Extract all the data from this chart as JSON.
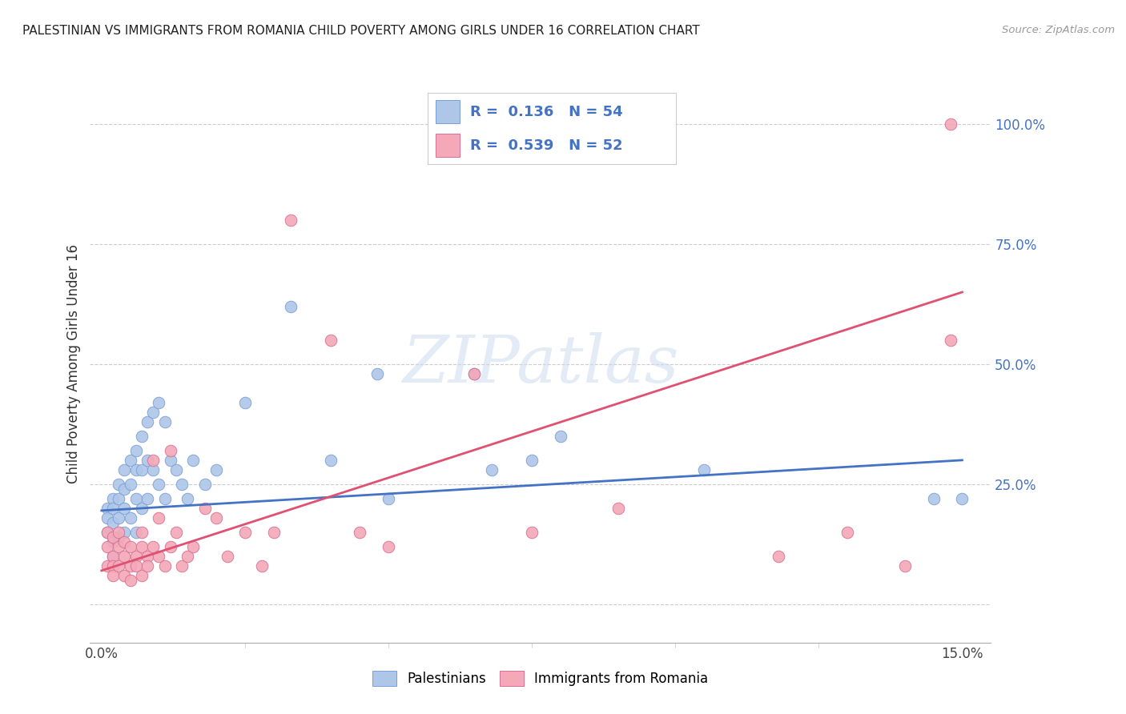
{
  "title": "PALESTINIAN VS IMMIGRANTS FROM ROMANIA CHILD POVERTY AMONG GIRLS UNDER 16 CORRELATION CHART",
  "source": "Source: ZipAtlas.com",
  "ylabel": "Child Poverty Among Girls Under 16",
  "xlim": [
    0.0,
    0.155
  ],
  "ylim": [
    -0.08,
    1.08
  ],
  "color_blue": "#aec6e8",
  "color_pink": "#f4a8b8",
  "color_line_blue": "#4472c4",
  "color_line_pink": "#e05070",
  "blue_line_x0": 0.0,
  "blue_line_y0": 0.195,
  "blue_line_x1": 0.15,
  "blue_line_y1": 0.3,
  "pink_line_x0": 0.0,
  "pink_line_y0": 0.07,
  "pink_line_x1": 0.15,
  "pink_line_y1": 0.65,
  "palestinians_x": [
    0.001,
    0.001,
    0.001,
    0.002,
    0.002,
    0.002,
    0.002,
    0.002,
    0.003,
    0.003,
    0.003,
    0.003,
    0.004,
    0.004,
    0.004,
    0.004,
    0.005,
    0.005,
    0.005,
    0.006,
    0.006,
    0.006,
    0.006,
    0.007,
    0.007,
    0.007,
    0.008,
    0.008,
    0.008,
    0.009,
    0.009,
    0.01,
    0.01,
    0.011,
    0.011,
    0.012,
    0.013,
    0.014,
    0.015,
    0.016,
    0.018,
    0.02,
    0.025,
    0.033,
    0.04,
    0.048,
    0.05,
    0.065,
    0.068,
    0.075,
    0.08,
    0.105,
    0.145,
    0.15
  ],
  "palestinians_y": [
    0.2,
    0.18,
    0.15,
    0.22,
    0.2,
    0.17,
    0.13,
    0.1,
    0.25,
    0.22,
    0.18,
    0.14,
    0.28,
    0.24,
    0.2,
    0.15,
    0.3,
    0.25,
    0.18,
    0.32,
    0.28,
    0.22,
    0.15,
    0.35,
    0.28,
    0.2,
    0.38,
    0.3,
    0.22,
    0.4,
    0.28,
    0.42,
    0.25,
    0.38,
    0.22,
    0.3,
    0.28,
    0.25,
    0.22,
    0.3,
    0.25,
    0.28,
    0.42,
    0.62,
    0.3,
    0.48,
    0.22,
    0.48,
    0.28,
    0.3,
    0.35,
    0.28,
    0.22,
    0.22
  ],
  "romania_x": [
    0.001,
    0.001,
    0.001,
    0.002,
    0.002,
    0.002,
    0.002,
    0.003,
    0.003,
    0.003,
    0.004,
    0.004,
    0.004,
    0.005,
    0.005,
    0.005,
    0.006,
    0.006,
    0.007,
    0.007,
    0.007,
    0.008,
    0.008,
    0.009,
    0.009,
    0.01,
    0.01,
    0.011,
    0.012,
    0.012,
    0.013,
    0.014,
    0.015,
    0.016,
    0.018,
    0.02,
    0.022,
    0.025,
    0.028,
    0.03,
    0.033,
    0.04,
    0.045,
    0.05,
    0.065,
    0.075,
    0.09,
    0.118,
    0.13,
    0.14,
    0.148,
    0.148
  ],
  "romania_y": [
    0.12,
    0.08,
    0.15,
    0.1,
    0.14,
    0.08,
    0.06,
    0.12,
    0.08,
    0.15,
    0.1,
    0.06,
    0.13,
    0.08,
    0.12,
    0.05,
    0.1,
    0.08,
    0.12,
    0.06,
    0.15,
    0.1,
    0.08,
    0.12,
    0.3,
    0.1,
    0.18,
    0.08,
    0.32,
    0.12,
    0.15,
    0.08,
    0.1,
    0.12,
    0.2,
    0.18,
    0.1,
    0.15,
    0.08,
    0.15,
    0.8,
    0.55,
    0.15,
    0.12,
    0.48,
    0.15,
    0.2,
    0.1,
    0.15,
    0.08,
    0.55,
    1.0
  ],
  "watermark_text": "ZIPatlas",
  "legend_r1_label": "R =  0.136   N = 54",
  "legend_r2_label": "R =  0.539   N = 52",
  "bottom_legend_1": "Palestinians",
  "bottom_legend_2": "Immigrants from Romania"
}
